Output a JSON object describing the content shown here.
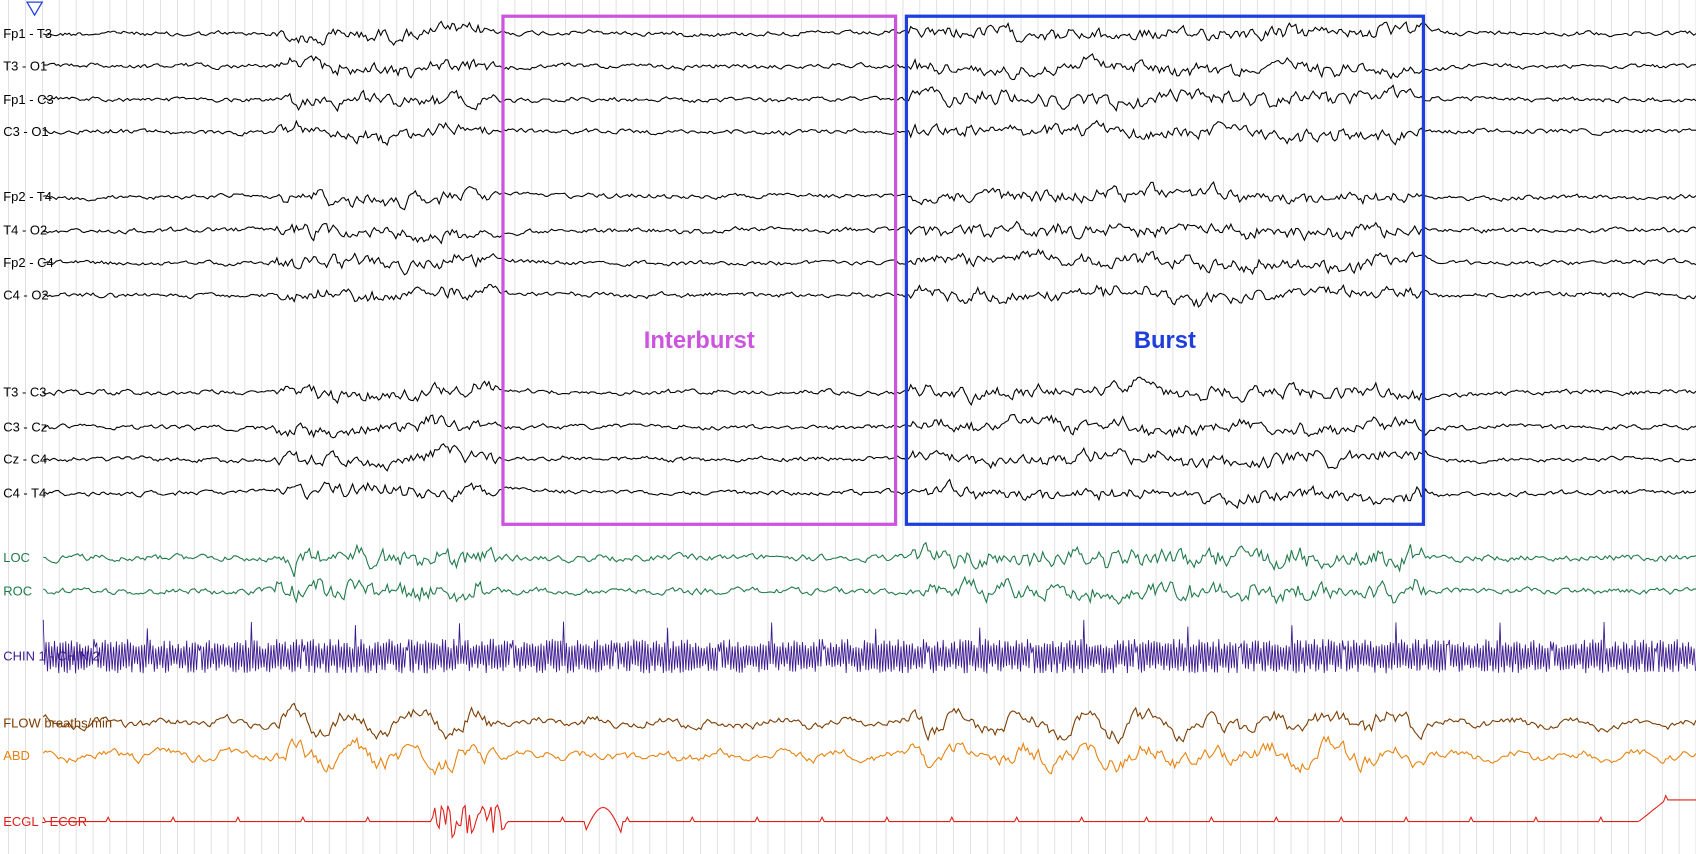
{
  "channels": [
    {
      "label": "Fp1 - T3",
      "color": "#000000"
    },
    {
      "label": "T3 - O1",
      "color": "#000000"
    },
    {
      "label": "Fp1 - C3",
      "color": "#000000"
    },
    {
      "label": "C3 - O1",
      "color": "#000000"
    },
    {
      "label": "Fp2 - T4",
      "color": "#000000"
    },
    {
      "label": "T4 - O2",
      "color": "#000000"
    },
    {
      "label": "Fp2 - C4",
      "color": "#000000"
    },
    {
      "label": "C4 - O2",
      "color": "#000000"
    },
    {
      "label": "T3 - C3",
      "color": "#000000"
    },
    {
      "label": "C3 - Cz",
      "color": "#000000"
    },
    {
      "label": "Cz - C4",
      "color": "#000000"
    },
    {
      "label": "C4 - T4",
      "color": "#000000"
    },
    {
      "label": "LOC",
      "color": "#1f7a4a"
    },
    {
      "label": "ROC",
      "color": "#1f7a4a"
    },
    {
      "label": "CHIN 1 - CHIN 2",
      "color": "#3a1890"
    },
    {
      "label": "FLOW breaths/min",
      "color": "#7a3c00"
    },
    {
      "label": "ABD",
      "color": "#e8820c"
    },
    {
      "label": "ECGL - ECGR",
      "color": "#e01e1a"
    }
  ],
  "annotations": [
    {
      "label": "Interburst",
      "color": "#cc55dd"
    },
    {
      "label": "Burst",
      "color": "#1f3fdd"
    }
  ]
}
